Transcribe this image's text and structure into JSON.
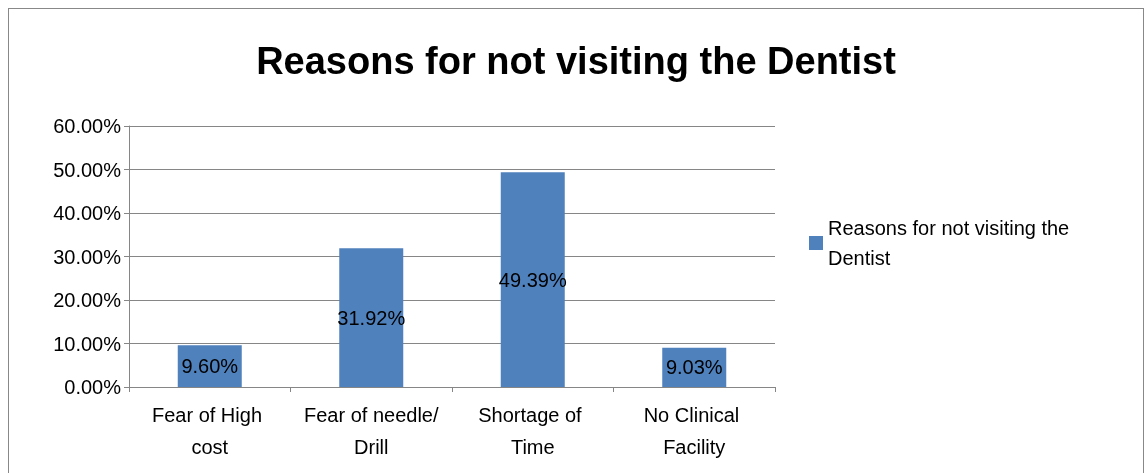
{
  "chart_data": {
    "type": "bar",
    "title": "Reasons for not visiting the Dentist",
    "categories": [
      "Fear of High cost",
      "Fear of needle/Drill",
      "Shortage of Time",
      "No Clinical Facility"
    ],
    "series": [
      {
        "name": "Reasons for not visiting the Dentist",
        "color": "#4f81bd",
        "values": [
          9.6,
          31.92,
          49.39,
          9.03
        ],
        "value_labels": [
          "9.60%",
          "31.92%",
          "49.39%",
          "9.03%"
        ]
      }
    ],
    "ylim": [
      0,
      60
    ],
    "yticks": [
      {
        "value": 0,
        "label": "0.00%"
      },
      {
        "value": 10,
        "label": "10.00%"
      },
      {
        "value": 20,
        "label": "20.00%"
      },
      {
        "value": 30,
        "label": "30.00%"
      },
      {
        "value": 40,
        "label": "40.00%"
      },
      {
        "value": 50,
        "label": "50.00%"
      },
      {
        "value": 60,
        "label": "60.00%"
      }
    ],
    "grid": "y",
    "legend": "right"
  }
}
